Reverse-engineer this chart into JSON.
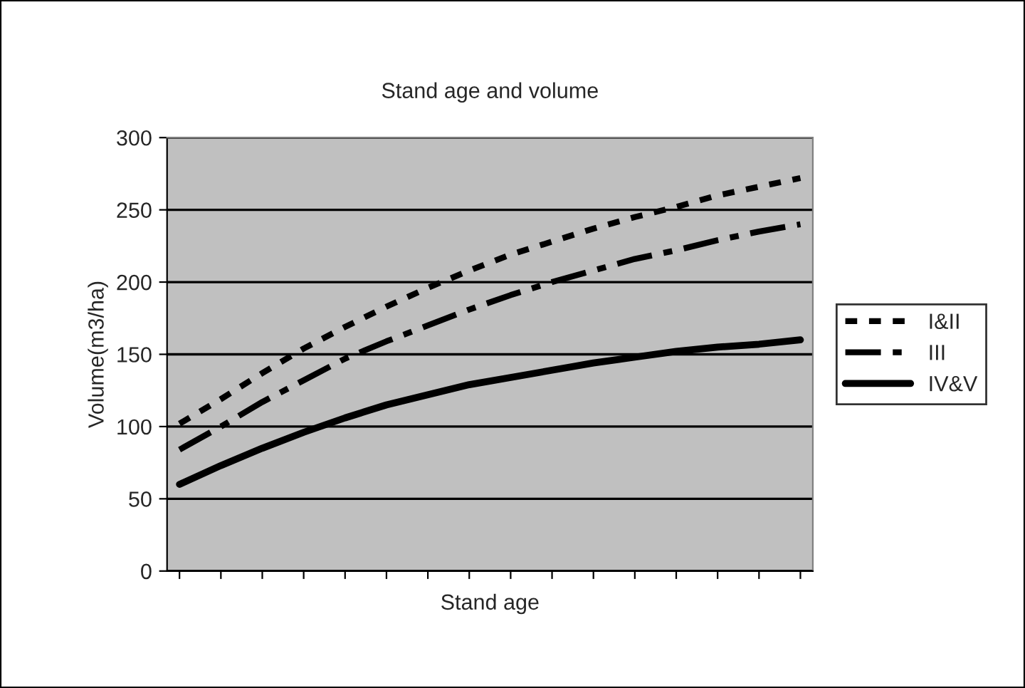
{
  "chart_data": {
    "type": "line",
    "title": "Stand age and volume",
    "xlabel": "Stand age",
    "ylabel": "Volume(m3/ha)",
    "categories": [
      null,
      null,
      null,
      null,
      null,
      null,
      null,
      null,
      null,
      null,
      null,
      null,
      null,
      null,
      null,
      null
    ],
    "series": [
      {
        "name": "I&II",
        "color": "#000000",
        "line_style": "dotted",
        "values": [
          102,
          119,
          137,
          154,
          169,
          183,
          196,
          208,
          219,
          228,
          237,
          245,
          252,
          260,
          266,
          272
        ]
      },
      {
        "name": "III",
        "color": "#000000",
        "line_style": "dashed",
        "values": [
          84,
          100,
          117,
          132,
          147,
          159,
          170,
          181,
          191,
          200,
          208,
          216,
          222,
          229,
          235,
          240
        ]
      },
      {
        "name": "IV&V",
        "color": "#000000",
        "line_style": "solid",
        "values": [
          60,
          73,
          85,
          96,
          106,
          115,
          122,
          129,
          134,
          139,
          144,
          148,
          152,
          155,
          157,
          160
        ]
      }
    ],
    "ylim": [
      0,
      300
    ],
    "yticks": [
      0,
      50,
      100,
      150,
      200,
      250,
      300
    ],
    "grid": "y",
    "legend": "right",
    "marker": "none"
  }
}
